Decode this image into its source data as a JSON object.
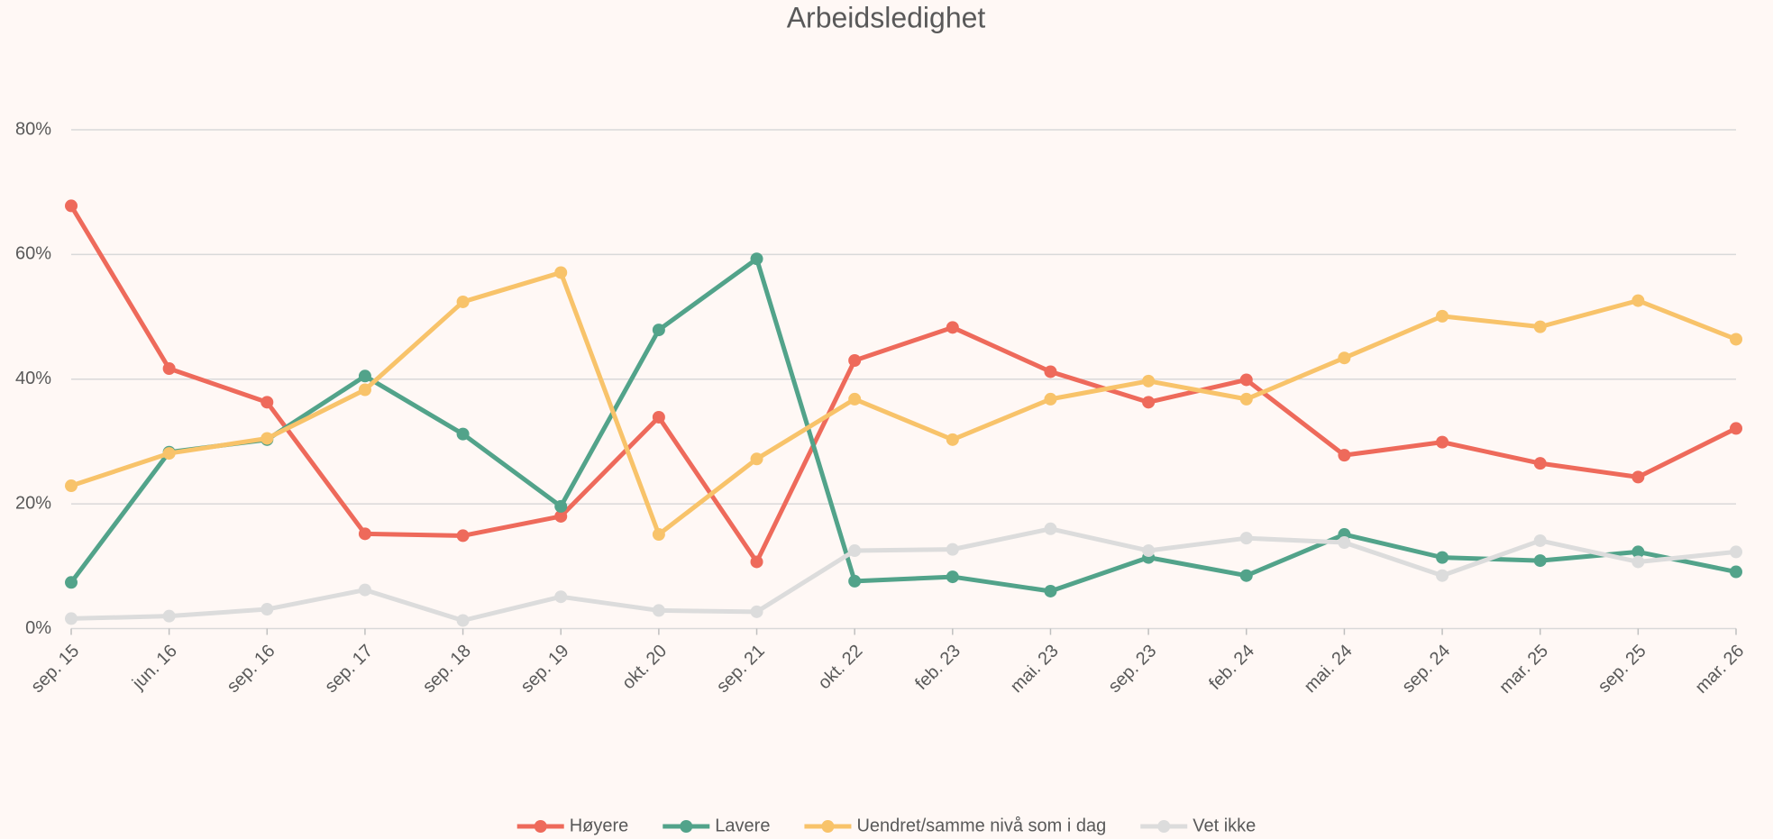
{
  "chart_data": {
    "type": "line",
    "title": "Arbeidsledighet",
    "categories": [
      "sep. 15",
      "jun. 16",
      "sep. 16",
      "sep. 17",
      "sep. 18",
      "sep. 19",
      "okt. 20",
      "sep. 21",
      "okt. 22",
      "feb. 23",
      "mai. 23",
      "sep. 23",
      "feb. 24",
      "mai. 24",
      "sep. 24",
      "mar. 25",
      "sep. 25",
      "mar. 26"
    ],
    "series": [
      {
        "name": "Høyere",
        "color": "#ee6a5b",
        "values": [
          67.8,
          41.7,
          36.3,
          15.2,
          14.9,
          18,
          33.9,
          10.7,
          43,
          48.3,
          41.2,
          36.3,
          39.9,
          27.8,
          29.9,
          26.5,
          24.3,
          32.1
        ]
      },
      {
        "name": "Lavere",
        "color": "#52a38a",
        "values": [
          7.4,
          28.3,
          30.3,
          40.5,
          31.2,
          19.6,
          47.9,
          59.3,
          7.6,
          8.3,
          6,
          11.4,
          8.5,
          15.1,
          11.4,
          10.9,
          12.3,
          9.1
        ]
      },
      {
        "name": "Uendret/samme nivå som i dag",
        "color": "#f8c36a",
        "values": [
          22.9,
          28.1,
          30.5,
          38.3,
          52.4,
          57.1,
          15.1,
          27.2,
          36.8,
          30.3,
          36.8,
          39.7,
          36.8,
          43.4,
          50.1,
          48.4,
          52.6,
          46.4
        ]
      },
      {
        "name": "Vet ikke",
        "color": "#dcdcdc",
        "values": [
          1.6,
          2,
          3.1,
          6.2,
          1.3,
          5.1,
          2.9,
          2.7,
          12.5,
          12.7,
          16,
          12.5,
          14.5,
          13.8,
          8.5,
          14.1,
          10.7,
          12.3
        ]
      }
    ],
    "ylim": [
      0,
      80
    ],
    "yticks": [
      {
        "value": 0,
        "label": "0%"
      },
      {
        "value": 20,
        "label": "20%"
      },
      {
        "value": 40,
        "label": "40%"
      },
      {
        "value": 60,
        "label": "60%"
      },
      {
        "value": 80,
        "label": "80%"
      }
    ],
    "grid": true,
    "legend": "bottom"
  }
}
